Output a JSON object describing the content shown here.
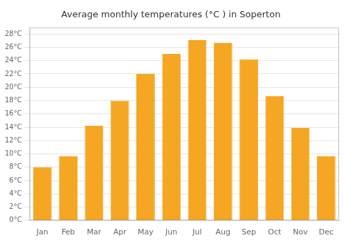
{
  "chart_data": {
    "type": "bar",
    "title": "Average monthly temperatures (°C ) in Soperton",
    "categories": [
      "Jan",
      "Feb",
      "Mar",
      "Apr",
      "May",
      "Jun",
      "Jul",
      "Aug",
      "Sep",
      "Oct",
      "Nov",
      "Dec"
    ],
    "values": [
      8.0,
      9.7,
      14.2,
      18.0,
      22.0,
      25.0,
      27.1,
      26.7,
      24.2,
      18.7,
      13.9,
      9.7
    ],
    "color": "#F5A623",
    "ylim": [
      0,
      29
    ],
    "yticks": [
      {
        "value": 0,
        "label": "0°C"
      },
      {
        "value": 2,
        "label": "2°C"
      },
      {
        "value": 4,
        "label": "4°C"
      },
      {
        "value": 6,
        "label": "6°C"
      },
      {
        "value": 8,
        "label": "8°C"
      },
      {
        "value": 10,
        "label": "10°C"
      },
      {
        "value": 12,
        "label": "12°C"
      },
      {
        "value": 14,
        "label": "14°C"
      },
      {
        "value": 16,
        "label": "16°C"
      },
      {
        "value": 18,
        "label": "18°C"
      },
      {
        "value": 20,
        "label": "20°C"
      },
      {
        "value": 22,
        "label": "22°C"
      },
      {
        "value": 24,
        "label": "24°C"
      },
      {
        "value": 26,
        "label": "26°C"
      },
      {
        "value": 28,
        "label": "28°C"
      }
    ],
    "grid": true
  }
}
